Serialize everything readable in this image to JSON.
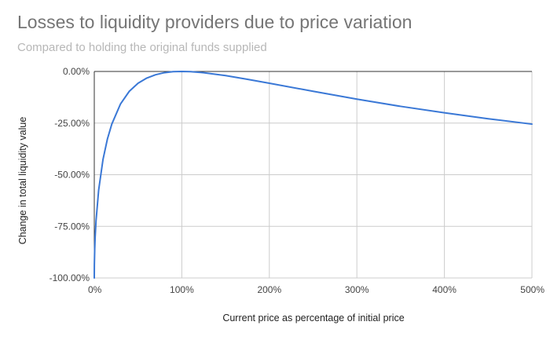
{
  "chart_data": {
    "type": "line",
    "title": "Losses to liquidity providers due to price variation",
    "subtitle": "Compared to holding the original funds supplied",
    "xlabel": "Current price as percentage of initial price",
    "ylabel": "Change in total liquidity value",
    "x_ticks": [
      "0%",
      "100%",
      "200%",
      "300%",
      "400%",
      "500%"
    ],
    "y_ticks": [
      "0.00%",
      "-25.00%",
      "-50.00%",
      "-75.00%",
      "-100.00%"
    ],
    "xlim": [
      0,
      500
    ],
    "ylim": [
      -100,
      0
    ],
    "grid": true,
    "legend": "none",
    "series_color": "#3a78d6",
    "series": [
      {
        "x": [
          0,
          0.1,
          0.5,
          1,
          2,
          5,
          10,
          15,
          20,
          30,
          40,
          50,
          60,
          70,
          80,
          90,
          100,
          110,
          125,
          150,
          175,
          200,
          250,
          300,
          350,
          400,
          450,
          500
        ],
        "y": [
          -100,
          -93.7,
          -85.9,
          -80.2,
          -72.3,
          -57.4,
          -42.5,
          -32.7,
          -25.5,
          -15.7,
          -9.6,
          -5.7,
          -3.2,
          -1.6,
          -0.6,
          -0.1,
          0,
          -0.1,
          -0.6,
          -2.0,
          -3.8,
          -5.7,
          -9.6,
          -13.4,
          -16.9,
          -20.0,
          -22.9,
          -25.5
        ]
      }
    ]
  }
}
